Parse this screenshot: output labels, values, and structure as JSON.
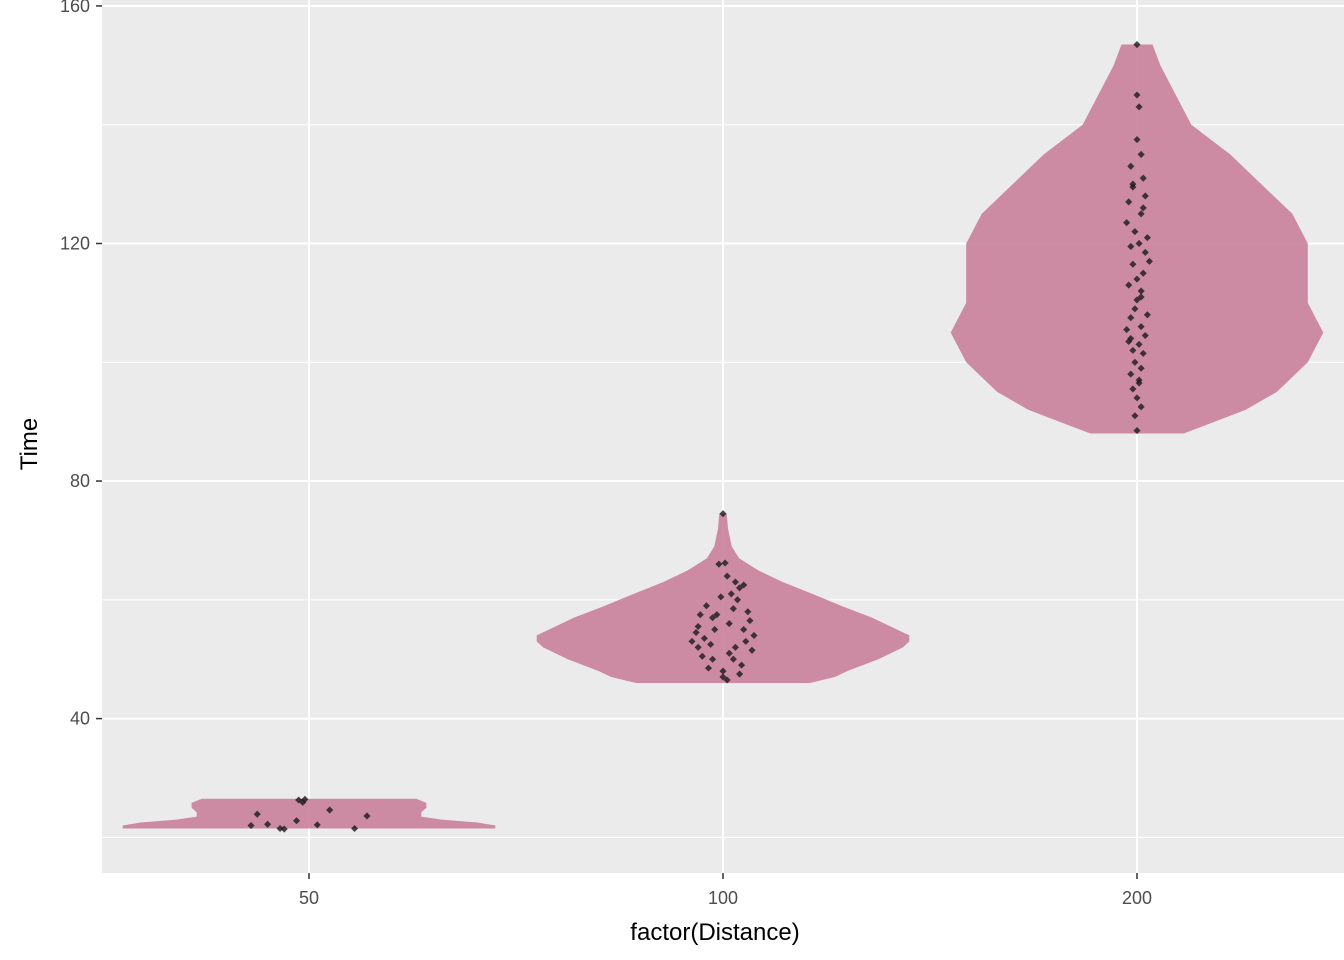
{
  "chart_data": {
    "type": "violin",
    "xlabel": "factor(Distance)",
    "ylabel": "Time",
    "categories": [
      "50",
      "100",
      "200"
    ],
    "ylim": [
      14,
      161
    ],
    "y_ticks": [
      40,
      80,
      120,
      160
    ],
    "y_tick_labels": [
      "40",
      "80",
      "120",
      "160"
    ],
    "grid": true,
    "panel_background": "#ebebeb",
    "violin_fill": "#c97f9b",
    "point_color": "#1a1a1a",
    "violins": [
      {
        "category": "50",
        "profile": [
          [
            21.5,
            7.3
          ],
          [
            22.0,
            7.3
          ],
          [
            22.5,
            6.6
          ],
          [
            23.0,
            5.2
          ],
          [
            23.5,
            4.4
          ],
          [
            24.2,
            4.4
          ],
          [
            25.0,
            4.6
          ],
          [
            25.8,
            4.6
          ],
          [
            26.5,
            4.2
          ]
        ],
        "points": [
          [
            -0.28,
            22.0
          ],
          [
            -0.2,
            22.2
          ],
          [
            -0.25,
            23.9
          ],
          [
            -0.14,
            21.5
          ],
          [
            -0.12,
            21.4
          ],
          [
            -0.06,
            22.8
          ],
          [
            0.04,
            22.1
          ],
          [
            0.1,
            24.6
          ],
          [
            -0.03,
            25.9
          ],
          [
            -0.05,
            26.3
          ],
          [
            -0.02,
            26.4
          ],
          [
            0.22,
            21.5
          ],
          [
            0.28,
            23.6
          ]
        ]
      },
      {
        "category": "100",
        "profile": [
          [
            46.0,
            0.7
          ],
          [
            47.0,
            0.9
          ],
          [
            48.0,
            1.0
          ],
          [
            50.0,
            1.25
          ],
          [
            52.0,
            1.45
          ],
          [
            53.0,
            1.5
          ],
          [
            54.0,
            1.5
          ],
          [
            55.0,
            1.4
          ],
          [
            57.0,
            1.2
          ],
          [
            59.0,
            0.95
          ],
          [
            61.0,
            0.72
          ],
          [
            63.0,
            0.48
          ],
          [
            65.0,
            0.28
          ],
          [
            67.0,
            0.13
          ],
          [
            69.0,
            0.07
          ],
          [
            72.0,
            0.04
          ],
          [
            74.5,
            0.03
          ]
        ],
        "points": [
          [
            -0.15,
            53.0
          ],
          [
            -0.12,
            55.5
          ],
          [
            -0.08,
            59.0
          ],
          [
            -0.05,
            57.0
          ],
          [
            0.0,
            48.0
          ],
          [
            0.02,
            46.5
          ],
          [
            0.05,
            50.0
          ],
          [
            0.08,
            62.0
          ],
          [
            -0.02,
            66.0
          ],
          [
            0.01,
            66.2
          ],
          [
            0.06,
            52.0
          ],
          [
            0.12,
            58.0
          ],
          [
            0.15,
            54.0
          ],
          [
            -0.1,
            50.5
          ],
          [
            0.1,
            55.0
          ],
          [
            0.0,
            74.5
          ],
          [
            -0.13,
            54.5
          ],
          [
            0.04,
            61.0
          ],
          [
            -0.06,
            52.5
          ],
          [
            0.09,
            49.0
          ],
          [
            0.13,
            56.5
          ],
          [
            -0.03,
            57.5
          ],
          [
            0.07,
            60.0
          ],
          [
            -0.09,
            53.5
          ],
          [
            0.03,
            51.0
          ],
          [
            0.0,
            47.0
          ],
          [
            0.11,
            53.0
          ],
          [
            -0.04,
            55.0
          ],
          [
            0.06,
            63.0
          ],
          [
            -0.11,
            57.5
          ],
          [
            0.02,
            64.0
          ],
          [
            0.14,
            51.5
          ],
          [
            -0.07,
            48.5
          ],
          [
            0.08,
            47.5
          ],
          [
            -0.01,
            60.5
          ],
          [
            0.05,
            58.5
          ],
          [
            -0.12,
            52.0
          ],
          [
            0.1,
            62.5
          ],
          [
            -0.05,
            50.0
          ],
          [
            0.03,
            56.0
          ]
        ]
      },
      {
        "category": "200",
        "profile": [
          [
            88.0,
            0.03
          ],
          [
            90.0,
            0.05
          ],
          [
            92.0,
            0.07
          ],
          [
            95.0,
            0.09
          ],
          [
            100.0,
            0.11
          ],
          [
            105.0,
            0.12
          ],
          [
            110.0,
            0.11
          ],
          [
            115.0,
            0.11
          ],
          [
            120.0,
            0.11
          ],
          [
            125.0,
            0.1
          ],
          [
            130.0,
            0.08
          ],
          [
            135.0,
            0.06
          ],
          [
            140.0,
            0.035
          ],
          [
            145.0,
            0.025
          ],
          [
            150.0,
            0.015
          ],
          [
            153.5,
            0.01
          ]
        ],
        "points": [
          [
            0.0,
            153.5
          ],
          [
            0.0,
            145.0
          ],
          [
            0.01,
            143.0
          ],
          [
            0.0,
            137.5
          ],
          [
            0.02,
            135.0
          ],
          [
            -0.03,
            133.0
          ],
          [
            0.03,
            131.0
          ],
          [
            -0.02,
            129.5
          ],
          [
            0.04,
            128.0
          ],
          [
            -0.04,
            127.0
          ],
          [
            0.02,
            125.0
          ],
          [
            -0.05,
            123.5
          ],
          [
            0.05,
            121.0
          ],
          [
            0.01,
            120.0
          ],
          [
            -0.03,
            119.5
          ],
          [
            0.04,
            118.5
          ],
          [
            0.06,
            117.0
          ],
          [
            -0.02,
            116.5
          ],
          [
            0.03,
            115.0
          ],
          [
            -0.04,
            113.0
          ],
          [
            0.02,
            112.0
          ],
          [
            0.0,
            110.5
          ],
          [
            -0.01,
            109.0
          ],
          [
            0.05,
            108.0
          ],
          [
            -0.03,
            107.5
          ],
          [
            0.02,
            106.0
          ],
          [
            -0.05,
            105.5
          ],
          [
            0.04,
            104.5
          ],
          [
            -0.04,
            103.5
          ],
          [
            0.01,
            103.0
          ],
          [
            -0.02,
            102.0
          ],
          [
            0.03,
            101.5
          ],
          [
            -0.01,
            100.0
          ],
          [
            0.02,
            99.0
          ],
          [
            -0.03,
            98.0
          ],
          [
            0.01,
            97.0
          ],
          [
            -0.02,
            95.5
          ],
          [
            0.0,
            94.0
          ],
          [
            0.02,
            92.5
          ],
          [
            -0.01,
            91.0
          ],
          [
            0.0,
            88.5
          ],
          [
            -0.02,
            130.0
          ],
          [
            0.03,
            126.0
          ],
          [
            -0.01,
            122.0
          ],
          [
            0.0,
            114.0
          ],
          [
            0.02,
            111.0
          ],
          [
            -0.03,
            104.0
          ],
          [
            0.01,
            96.5
          ]
        ]
      }
    ]
  }
}
